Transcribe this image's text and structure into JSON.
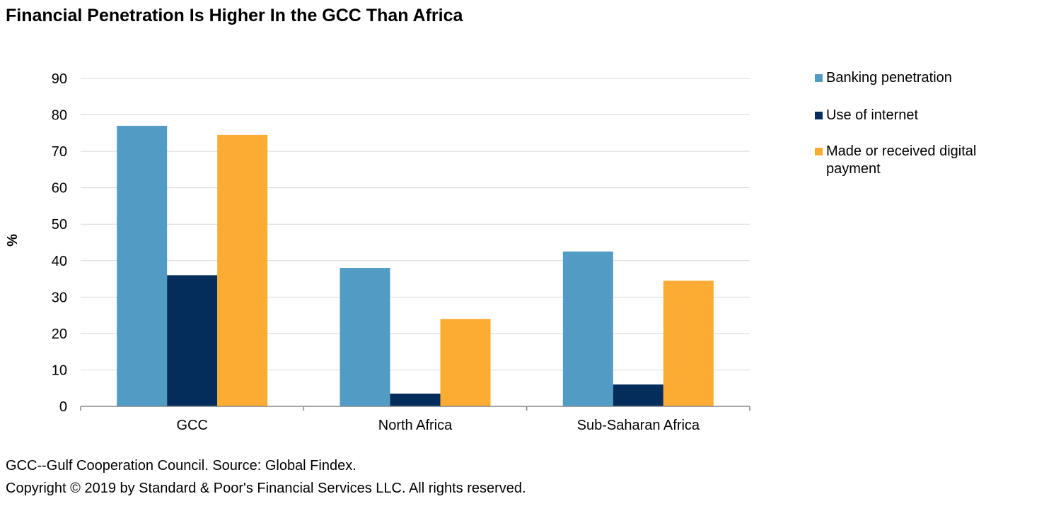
{
  "title": "Financial Penetration Is Higher In the GCC Than Africa",
  "footnote": "GCC--Gulf Cooperation Council. Source: Global Findex.",
  "copyright": "Copyright © 2019 by Standard & Poor's Financial Services LLC. All rights reserved.",
  "chart_data": {
    "type": "bar",
    "categories": [
      "GCC",
      "North Africa",
      "Sub-Saharan Africa"
    ],
    "series": [
      {
        "name": "Banking penetration",
        "values": [
          77,
          38,
          42.5
        ],
        "color": "#529bc4"
      },
      {
        "name": "Use of internet",
        "values": [
          36,
          3.5,
          6
        ],
        "color": "#042d5c"
      },
      {
        "name": "Made or received digital payment",
        "values": [
          74.5,
          24,
          34.5
        ],
        "color": "#fdac33"
      }
    ],
    "ylabel": "%",
    "ylim": [
      0,
      90
    ],
    "yticks": [
      0,
      10,
      20,
      30,
      40,
      50,
      60,
      70,
      80,
      90
    ],
    "grid": true,
    "legend_position": "right"
  }
}
